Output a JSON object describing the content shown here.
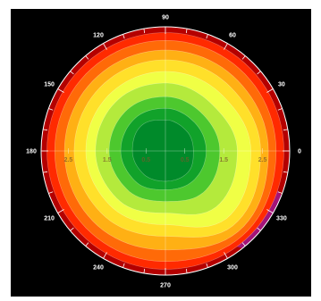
{
  "chart_data": {
    "type": "heatmap",
    "projection": "polar",
    "title": "",
    "angle_labels": [
      "0",
      "30",
      "60",
      "90",
      "120",
      "150",
      "180",
      "210",
      "240",
      "270",
      "300",
      "330"
    ],
    "radial_labels_left": [
      "2.5",
      "1.5",
      "0.5"
    ],
    "radial_labels_right": [
      "0.5",
      "1.5",
      "2.5"
    ],
    "radial_tick_values": [
      2.5,
      1.5,
      0.5
    ],
    "radial_max": 3.2,
    "angle_direction": "counterclockwise",
    "zero_angle": "right",
    "grid": false,
    "background": "#000000",
    "colorscale": [
      "#008a2a",
      "#2fbf2a",
      "#9be23a",
      "#f5ff3c",
      "#ffd21e",
      "#ff8a10",
      "#ff2a00",
      "#d40000",
      "#a020c0"
    ],
    "contour_levels": [
      {
        "level": 0.2,
        "color": "#008a2a",
        "radii_by_angle": [
          [
            0,
            0.72
          ],
          [
            45,
            0.75
          ],
          [
            90,
            0.8
          ],
          [
            135,
            0.9
          ],
          [
            180,
            0.85
          ],
          [
            225,
            0.82
          ],
          [
            270,
            0.78
          ],
          [
            315,
            0.8
          ]
        ]
      },
      {
        "level": 0.4,
        "color": "#11a22a",
        "radii_by_angle": [
          [
            0,
            1.05
          ],
          [
            45,
            1.05
          ],
          [
            90,
            1.1
          ],
          [
            135,
            1.15
          ],
          [
            180,
            1.15
          ],
          [
            225,
            1.1
          ],
          [
            270,
            1.0
          ],
          [
            315,
            1.05
          ]
        ]
      },
      {
        "level": 0.6,
        "color": "#4dc82e",
        "radii_by_angle": [
          [
            0,
            1.4
          ],
          [
            45,
            1.35
          ],
          [
            90,
            1.4
          ],
          [
            135,
            1.45
          ],
          [
            180,
            1.45
          ],
          [
            225,
            1.4
          ],
          [
            270,
            1.3
          ],
          [
            315,
            1.45
          ]
        ]
      },
      {
        "level": 0.8,
        "color": "#b4ea3c",
        "radii_by_angle": [
          [
            0,
            1.85
          ],
          [
            45,
            1.7
          ],
          [
            90,
            1.75
          ],
          [
            135,
            1.8
          ],
          [
            180,
            1.8
          ],
          [
            225,
            1.75
          ],
          [
            270,
            1.6
          ],
          [
            315,
            1.95
          ]
        ]
      },
      {
        "level": 1.0,
        "color": "#f0ff45",
        "radii_by_angle": [
          [
            0,
            2.2
          ],
          [
            45,
            2.05
          ],
          [
            90,
            2.05
          ],
          [
            135,
            2.05
          ],
          [
            180,
            2.05
          ],
          [
            225,
            2.0
          ],
          [
            270,
            1.9
          ],
          [
            315,
            2.35
          ]
        ]
      },
      {
        "level": 1.2,
        "color": "#ffe02a",
        "radii_by_angle": [
          [
            0,
            2.45
          ],
          [
            45,
            2.35
          ],
          [
            90,
            2.35
          ],
          [
            135,
            2.35
          ],
          [
            180,
            2.35
          ],
          [
            225,
            2.3
          ],
          [
            270,
            2.2
          ],
          [
            315,
            2.6
          ]
        ]
      },
      {
        "level": 1.4,
        "color": "#ffb014",
        "radii_by_angle": [
          [
            0,
            2.65
          ],
          [
            45,
            2.6
          ],
          [
            90,
            2.6
          ],
          [
            135,
            2.6
          ],
          [
            180,
            2.6
          ],
          [
            225,
            2.6
          ],
          [
            270,
            2.55
          ],
          [
            315,
            2.8
          ]
        ]
      },
      {
        "level": 1.6,
        "color": "#ff6a08",
        "radii_by_angle": [
          [
            0,
            2.85
          ],
          [
            45,
            2.85
          ],
          [
            90,
            2.85
          ],
          [
            135,
            2.85
          ],
          [
            180,
            2.85
          ],
          [
            225,
            2.85
          ],
          [
            270,
            2.85
          ],
          [
            315,
            2.95
          ]
        ]
      },
      {
        "level": 1.8,
        "color": "#ff2a00",
        "radii_by_angle": [
          [
            0,
            3.05
          ],
          [
            45,
            3.05
          ],
          [
            90,
            3.05
          ],
          [
            135,
            3.05
          ],
          [
            180,
            3.05
          ],
          [
            225,
            3.05
          ],
          [
            270,
            3.05
          ],
          [
            315,
            3.08
          ]
        ]
      }
    ]
  }
}
